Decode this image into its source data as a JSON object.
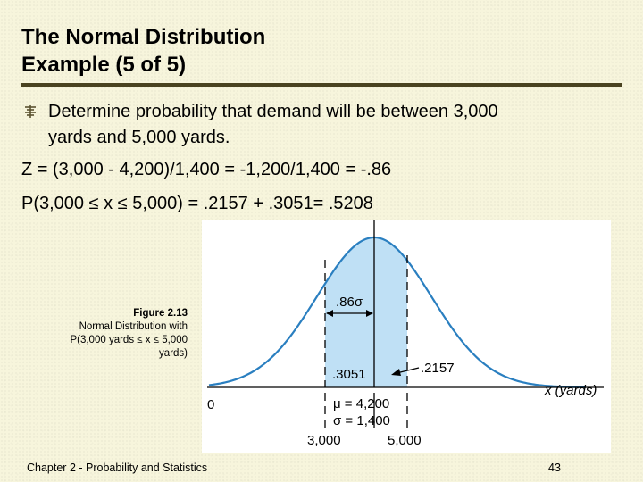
{
  "slide": {
    "title_line1": "The Normal Distribution",
    "title_line2": "Example (5 of 5)",
    "bullet": {
      "icon": "winding-bullet-icon",
      "line1": "Determine probability that demand will be between 3,000",
      "line2": "yards and 5,000 yards."
    },
    "z_formula": "Z = (3,000 - 4,200)/1,400 = -1,200/1,400 = -.86",
    "p_formula": "P(3,000 ≤ x ≤ 5,000) = .2157 + .3051= .5208"
  },
  "figure": {
    "caption_title": "Figure 2.13",
    "caption_line1": "Normal Distribution with",
    "caption_line2": "P(3,000 yards ≤ x ≤ 5,000",
    "caption_line3": "yards)",
    "labels": {
      "sigma_dist": ".86σ",
      "area_left": ".3051",
      "area_right": ".2157",
      "zero": "0",
      "x_axis": "x (yards)",
      "mu": "μ = 4,200",
      "sigma": "σ = 1,400",
      "tick_3000": "3,000",
      "tick_5000": "5,000"
    },
    "colors": {
      "curve": "#2a7fc0",
      "shade": "#bfe0f5"
    }
  },
  "footer": {
    "chapter": "Chapter 2 - Probability and Statistics",
    "page": "43"
  }
}
